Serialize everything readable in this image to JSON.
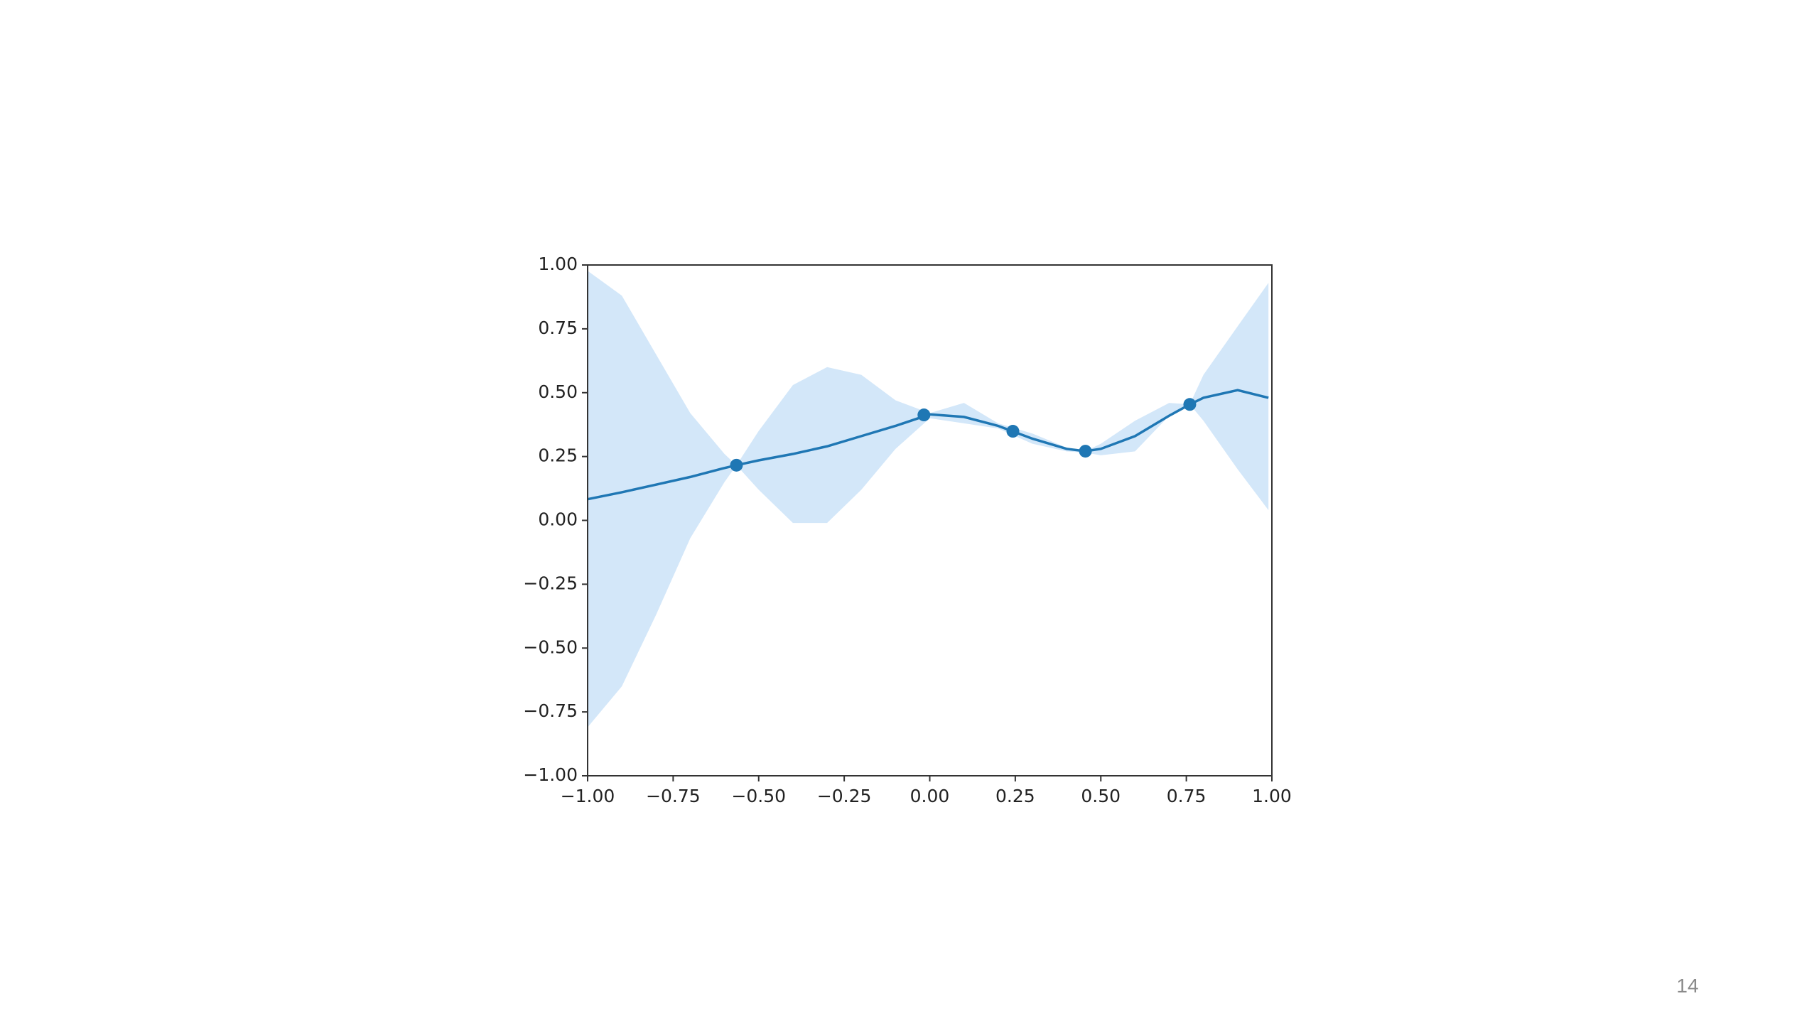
{
  "chart_data": {
    "type": "line",
    "x": [
      -1,
      -0.9,
      -0.8,
      -0.7,
      -0.6,
      -0.565,
      -0.5,
      -0.4,
      -0.3,
      -0.2,
      -0.1,
      0,
      0.1,
      0.2,
      0.3,
      0.4,
      0.455,
      0.5,
      0.6,
      0.7,
      0.76,
      0.8,
      0.9,
      0.99
    ],
    "series": [
      {
        "color": "#1f77b4",
        "values": [
          0.083,
          0.11,
          0.14,
          0.17,
          0.205,
          0.216,
          0.235,
          0.26,
          0.29,
          0.33,
          0.37,
          0.415,
          0.405,
          0.37,
          0.32,
          0.28,
          0.271,
          0.28,
          0.33,
          0.41,
          0.454,
          0.48,
          0.51,
          0.48
        ]
      }
    ],
    "band": {
      "color": "#d3e7f9",
      "upper": [
        0.977,
        0.88,
        0.65,
        0.42,
        0.26,
        0.216,
        0.35,
        0.53,
        0.6,
        0.57,
        0.47,
        0.42,
        0.46,
        0.38,
        0.34,
        0.285,
        0.271,
        0.3,
        0.39,
        0.46,
        0.454,
        0.57,
        0.76,
        0.93
      ],
      "lower": [
        -0.81,
        -0.65,
        -0.37,
        -0.07,
        0.15,
        0.216,
        0.12,
        -0.01,
        -0.01,
        0.12,
        0.28,
        0.4,
        0.38,
        0.36,
        0.3,
        0.27,
        0.265,
        0.255,
        0.27,
        0.41,
        0.454,
        0.39,
        0.2,
        0.04
      ]
    },
    "points": {
      "color": "#1f77b4",
      "x": [
        -0.565,
        -0.017,
        0.243,
        0.455,
        0.76
      ],
      "y": [
        0.216,
        0.413,
        0.349,
        0.271,
        0.454
      ]
    },
    "xlim": [
      -1,
      1
    ],
    "ylim": [
      -1,
      1
    ],
    "xticks": [
      {
        "value": -1,
        "label": "−1.00"
      },
      {
        "value": -0.75,
        "label": "−0.75"
      },
      {
        "value": -0.5,
        "label": "−0.50"
      },
      {
        "value": -0.25,
        "label": "−0.25"
      },
      {
        "value": 0,
        "label": "0.00"
      },
      {
        "value": 0.25,
        "label": "0.25"
      },
      {
        "value": 0.5,
        "label": "0.50"
      },
      {
        "value": 0.75,
        "label": "0.75"
      },
      {
        "value": 1,
        "label": "1.00"
      }
    ],
    "yticks": [
      {
        "value": -1,
        "label": "−1.00"
      },
      {
        "value": -0.75,
        "label": "−0.75"
      },
      {
        "value": -0.5,
        "label": "−0.50"
      },
      {
        "value": -0.25,
        "label": "−0.25"
      },
      {
        "value": 0,
        "label": "0.00"
      },
      {
        "value": 0.25,
        "label": "0.25"
      },
      {
        "value": 0.5,
        "label": "0.50"
      },
      {
        "value": 0.75,
        "label": "0.75"
      },
      {
        "value": 1,
        "label": "1.00"
      }
    ],
    "grid": false
  },
  "page_number": "14"
}
